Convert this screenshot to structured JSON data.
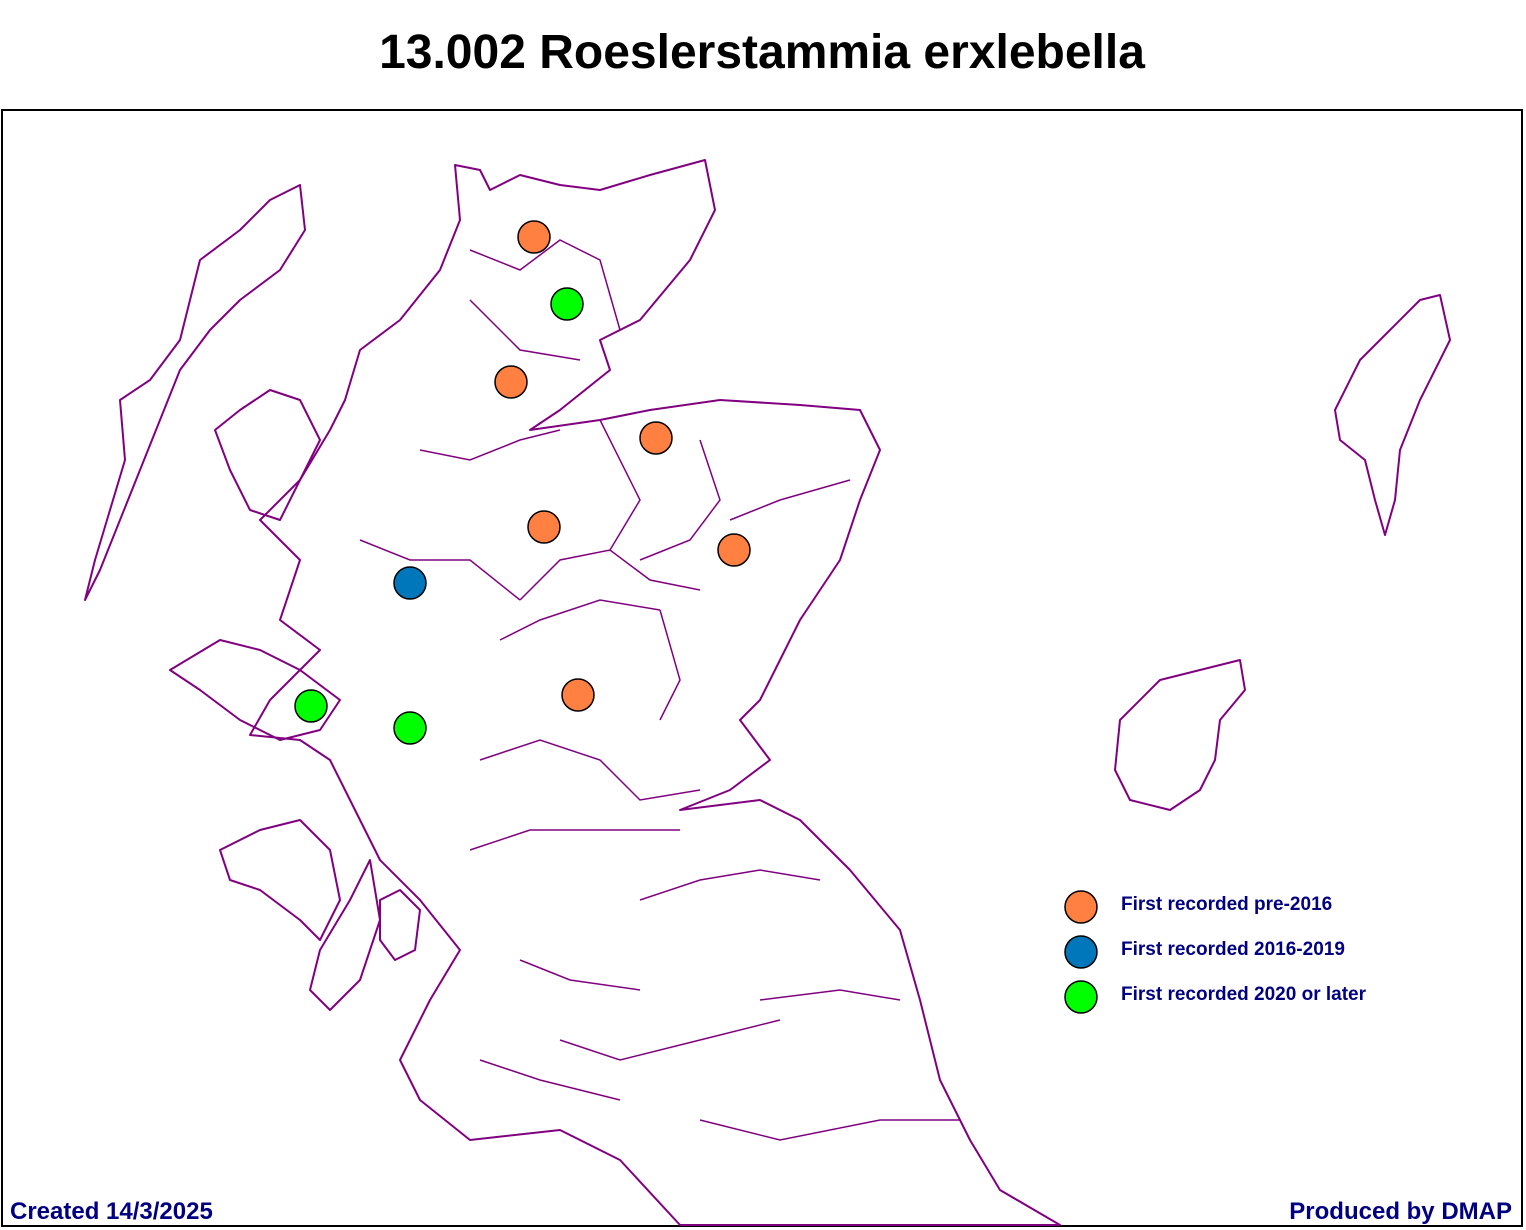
{
  "title": "13.002 Roeslerstammia erxlebella",
  "legend": {
    "items": [
      {
        "label": "First recorded pre-2016",
        "color": "#ff8040"
      },
      {
        "label": "First recorded 2016-2019",
        "color": "#0077bb"
      },
      {
        "label": "First recorded 2020 or later",
        "color": "#00ff00"
      }
    ]
  },
  "footer": {
    "created": "Created 14/3/2025",
    "producer": "Produced by DMAP"
  }
}
